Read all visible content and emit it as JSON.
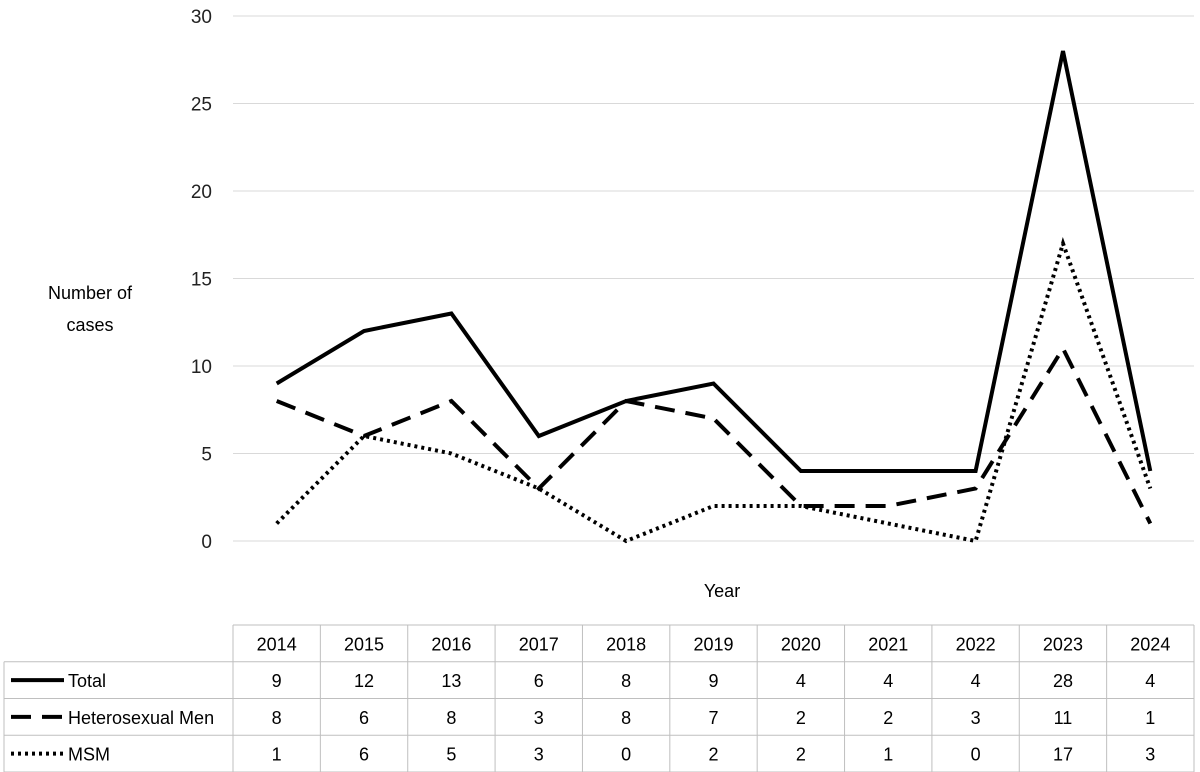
{
  "chart_data": {
    "type": "line",
    "title": "",
    "xlabel": "Year",
    "ylabel": [
      "Number of",
      "cases"
    ],
    "ylim": [
      0,
      30
    ],
    "yticks": [
      0,
      5,
      10,
      15,
      20,
      25,
      30
    ],
    "grid": true,
    "legend_placement": "data-table-left",
    "categories": [
      "2014",
      "2015",
      "2016",
      "2017",
      "2018",
      "2019",
      "2020",
      "2021",
      "2022",
      "2023",
      "2024"
    ],
    "series": [
      {
        "name": "Total",
        "style": "solid",
        "color": "#000000",
        "values": [
          9,
          12,
          13,
          6,
          8,
          9,
          4,
          4,
          4,
          28,
          4
        ]
      },
      {
        "name": "Heterosexual Men",
        "style": "dashed",
        "color": "#000000",
        "values": [
          8,
          6,
          8,
          3,
          8,
          7,
          2,
          2,
          3,
          11,
          1
        ]
      },
      {
        "name": "MSM",
        "style": "dotted",
        "color": "#000000",
        "values": [
          1,
          6,
          5,
          3,
          0,
          2,
          2,
          1,
          0,
          17,
          3
        ]
      }
    ]
  }
}
